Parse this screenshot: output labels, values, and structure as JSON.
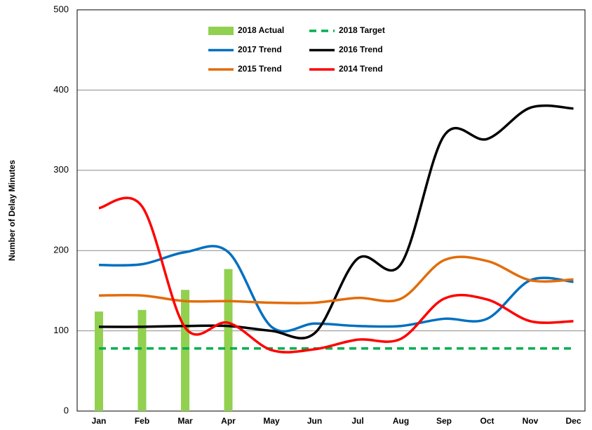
{
  "chart_data": {
    "type": "line",
    "y_label": "Number of Delay Minutes",
    "categories": [
      "Jan",
      "Feb",
      "Mar",
      "Apr",
      "May",
      "Jun",
      "Jul",
      "Aug",
      "Sep",
      "Oct",
      "Nov",
      "Dec"
    ],
    "ylim": [
      0,
      500
    ],
    "yticks": [
      0,
      100,
      200,
      300,
      400,
      500
    ],
    "grid": true,
    "series": [
      {
        "name": "2018 Actual",
        "type": "bar",
        "color": "#92d050",
        "values": [
          124,
          126,
          151,
          177,
          null,
          null,
          null,
          null,
          null,
          null,
          null,
          null
        ]
      },
      {
        "name": "2018 Target",
        "type": "dashed",
        "color": "#00b050",
        "values": [
          78,
          78,
          78,
          78,
          78,
          78,
          78,
          78,
          78,
          78,
          78,
          78
        ]
      },
      {
        "name": "2017 Trend",
        "type": "line",
        "color": "#0070c0",
        "values": [
          182,
          183,
          198,
          198,
          105,
          109,
          106,
          106,
          115,
          115,
          163,
          161
        ]
      },
      {
        "name": "2016 Trend",
        "type": "line",
        "color": "#000000",
        "values": [
          105,
          105,
          106,
          106,
          100,
          97,
          190,
          183,
          343,
          339,
          378,
          377
        ]
      },
      {
        "name": "2015 Trend",
        "type": "line",
        "color": "#e36c09",
        "values": [
          144,
          144,
          137,
          137,
          135,
          135,
          141,
          140,
          188,
          187,
          163,
          164
        ]
      },
      {
        "name": "2014 Trend",
        "type": "line",
        "color": "#ff0000",
        "values": [
          253,
          255,
          104,
          110,
          76,
          77,
          89,
          90,
          140,
          139,
          112,
          112
        ]
      }
    ]
  }
}
